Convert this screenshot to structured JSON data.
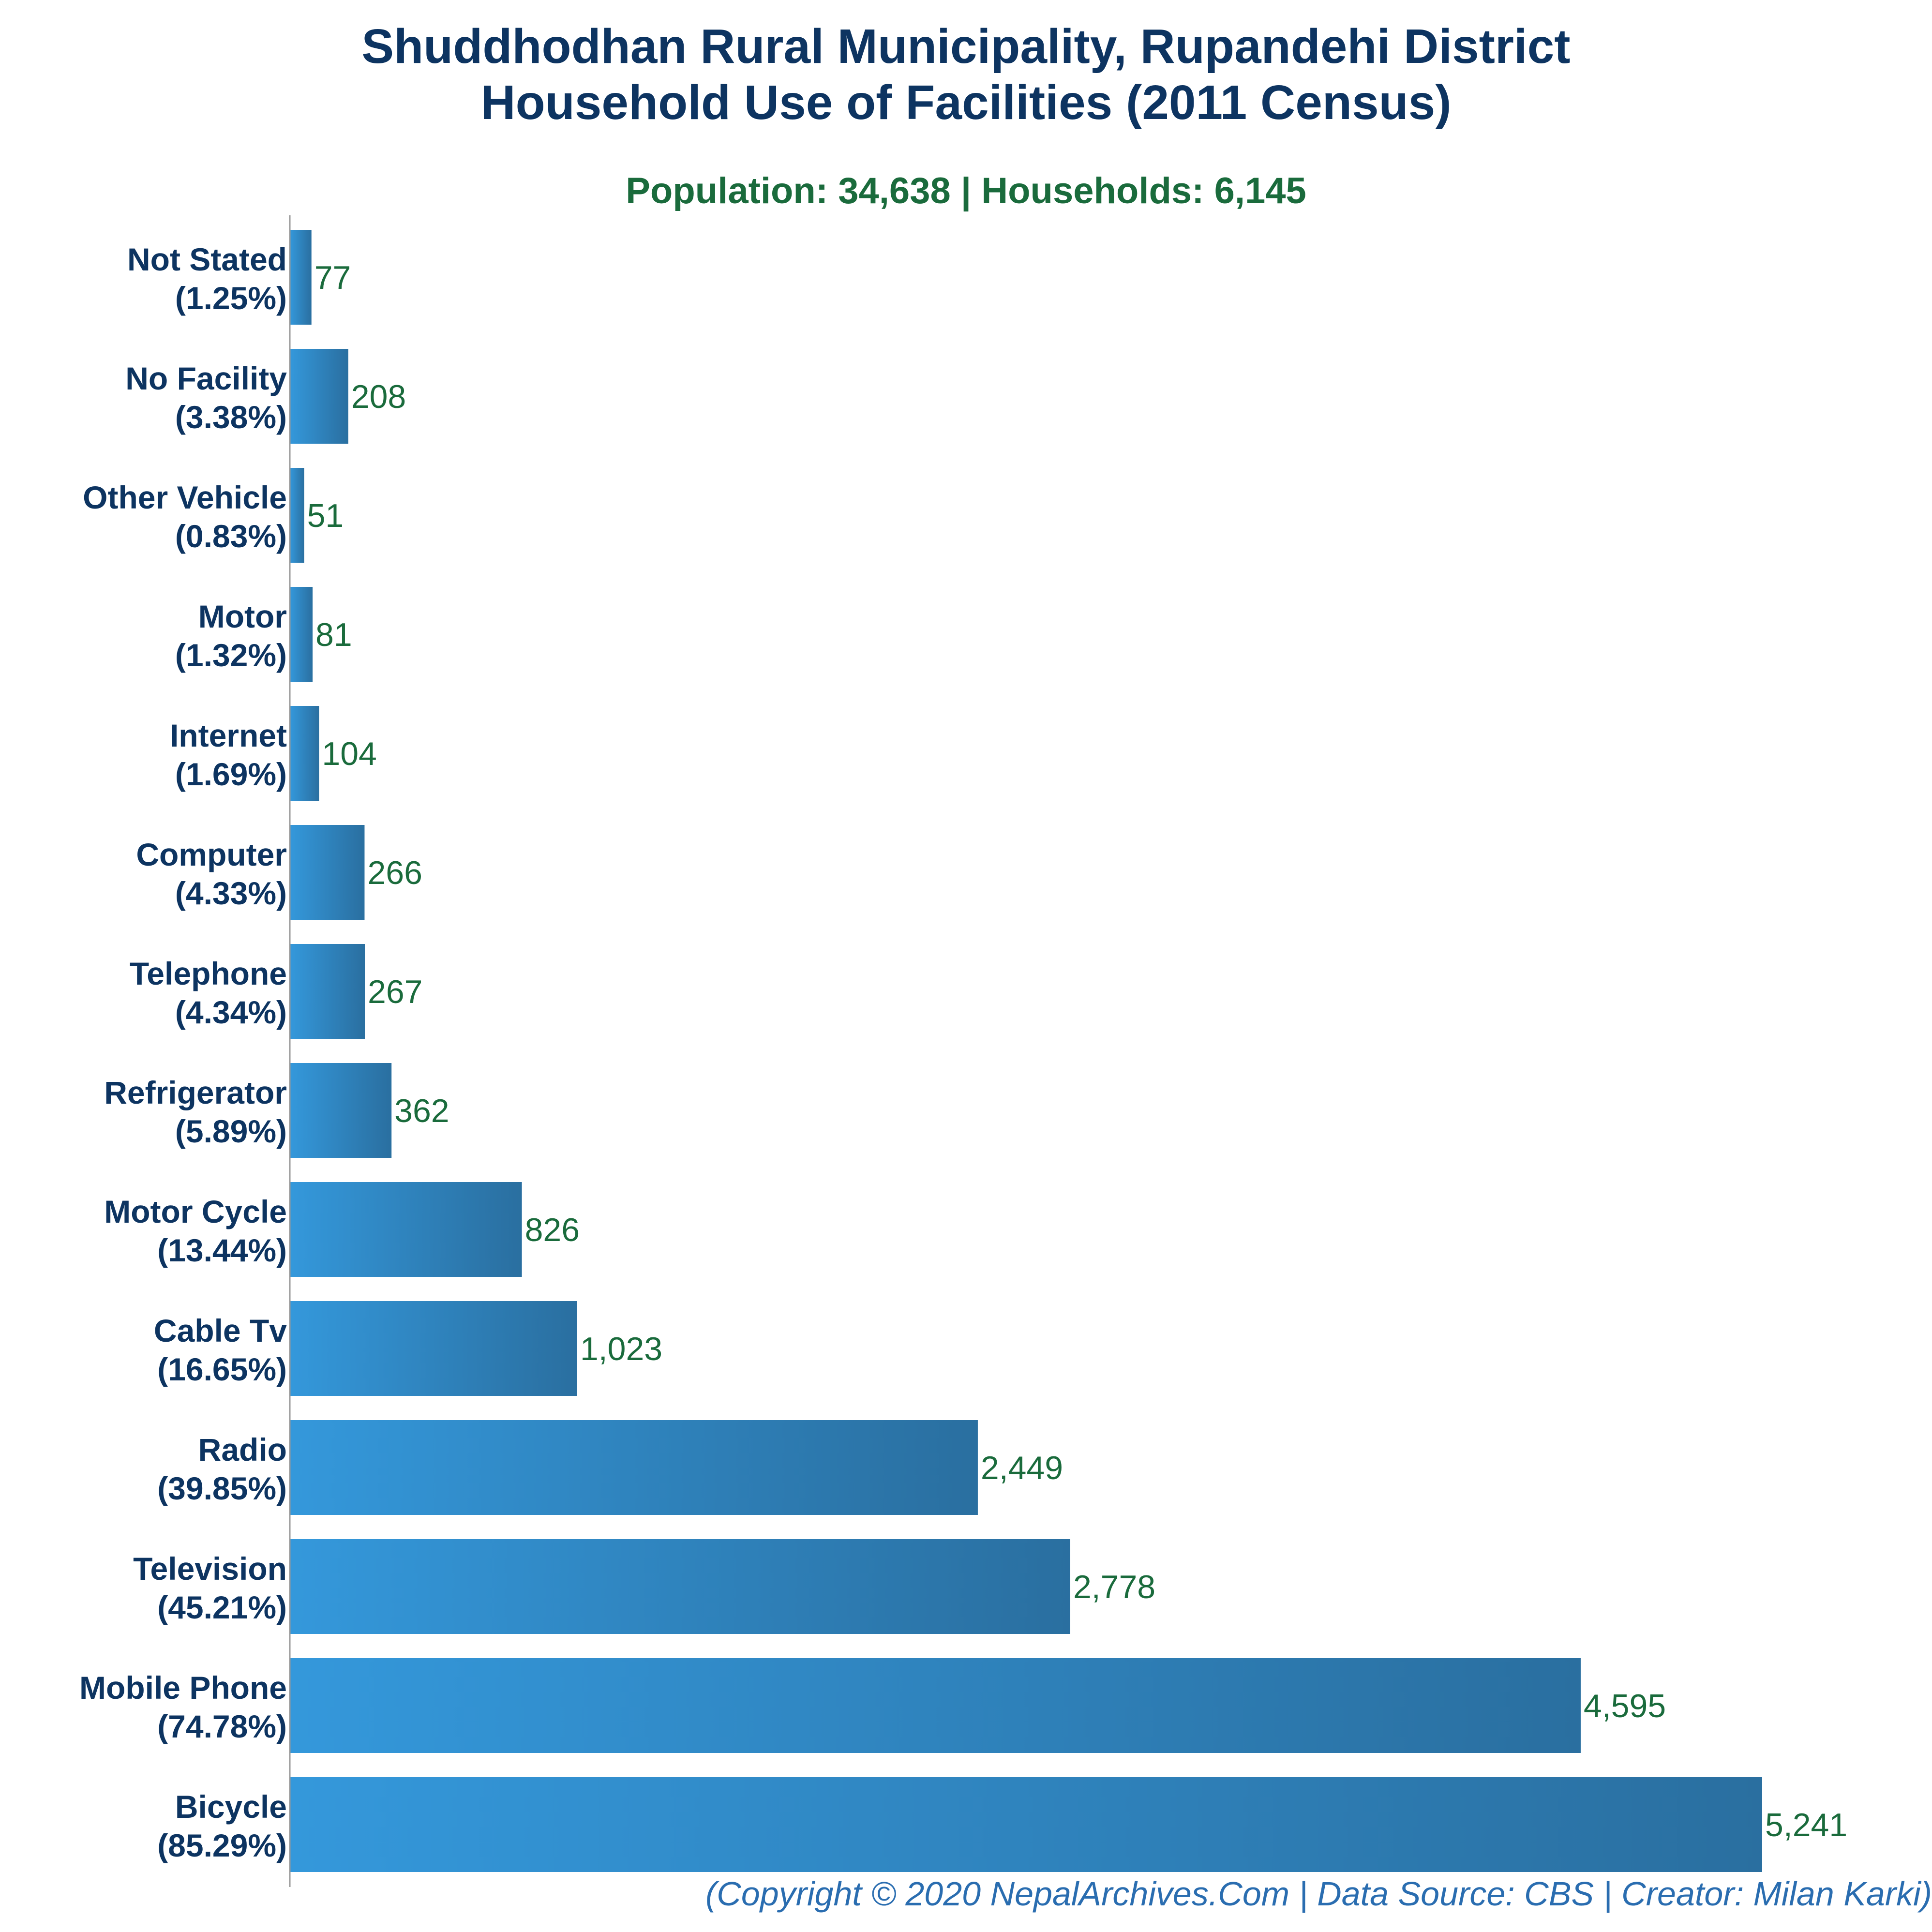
{
  "title_line1": "Shuddhodhan Rural Municipality, Rupandehi District",
  "title_line2": "Household Use of Facilities (2011 Census)",
  "subtitle": "Population: 34,638 | Households: 6,145",
  "footer": "(Copyright © 2020 NepalArchives.Com | Data Source: CBS | Creator: Milan Karki)",
  "colors": {
    "title": "#0d3461",
    "subtitle": "#1a6b3c",
    "category_label": "#0d3461",
    "value_label": "#1a6b3c",
    "bar_light": "#3498db",
    "bar_dark": "#2a6fa0",
    "axis": "#999999",
    "footer": "#2a6db0"
  },
  "chart_data": {
    "type": "bar",
    "orientation": "horizontal",
    "categories": [
      "Not Stated",
      "No Facility",
      "Other Vehicle",
      "Motor",
      "Internet",
      "Computer",
      "Telephone",
      "Refrigerator",
      "Motor Cycle",
      "Cable Tv",
      "Radio",
      "Television",
      "Mobile Phone",
      "Bicycle"
    ],
    "percent_labels": [
      "(1.25%)",
      "(3.38%)",
      "(0.83%)",
      "(1.32%)",
      "(1.69%)",
      "(4.33%)",
      "(4.34%)",
      "(5.89%)",
      "(13.44%)",
      "(16.65%)",
      "(39.85%)",
      "(45.21%)",
      "(74.78%)",
      "(85.29%)"
    ],
    "values": [
      77,
      208,
      51,
      81,
      104,
      266,
      267,
      362,
      826,
      1023,
      2449,
      2778,
      4595,
      5241
    ],
    "value_labels": [
      "77",
      "208",
      "51",
      "81",
      "104",
      "266",
      "267",
      "362",
      "826",
      "1,023",
      "2,449",
      "2,778",
      "4,595",
      "5,241"
    ],
    "xlabel": "",
    "ylabel": "",
    "grid": false,
    "legend": "none"
  }
}
